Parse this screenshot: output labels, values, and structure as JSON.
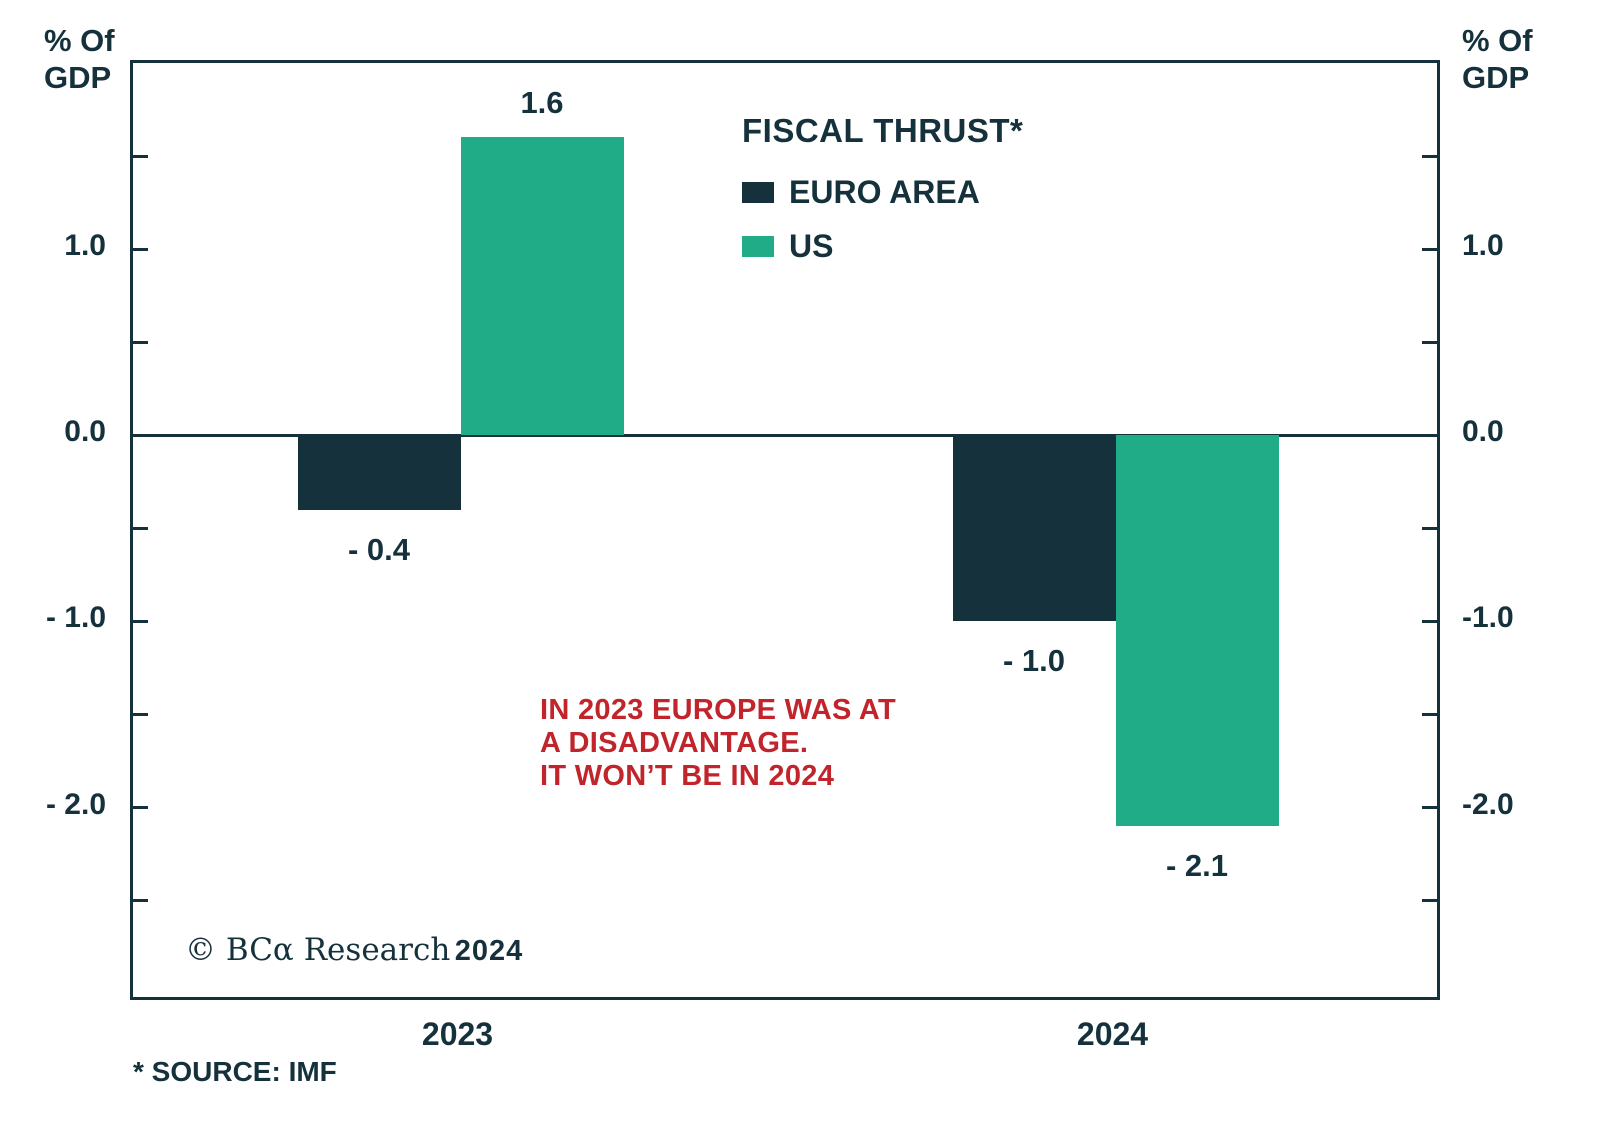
{
  "chart_data": {
    "type": "bar",
    "title": "FISCAL THRUST*",
    "categories": [
      "2023",
      "2024"
    ],
    "group_centers": [
      0.25,
      0.75
    ],
    "series": [
      {
        "name": "EURO AREA",
        "color": "#15323c",
        "values": [
          -0.4,
          -1.0
        ],
        "value_labels": [
          "- 0.4",
          "- 1.0"
        ]
      },
      {
        "name": "US",
        "color": "#1fac87",
        "values": [
          1.6,
          -2.1
        ],
        "value_labels": [
          "1.6",
          "- 2.1"
        ]
      }
    ],
    "ylim": [
      -3.05,
      2.0
    ],
    "yticks": [
      {
        "v": 1.5,
        "left": "",
        "right": ""
      },
      {
        "v": 1.0,
        "left": "1.0",
        "right": "1.0"
      },
      {
        "v": 0.5,
        "left": "",
        "right": ""
      },
      {
        "v": 0.0,
        "left": "0.0",
        "right": "0.0"
      },
      {
        "v": -0.5,
        "left": "",
        "right": ""
      },
      {
        "v": -1.0,
        "left": "- 1.0",
        "right": "-1.0"
      },
      {
        "v": -1.5,
        "left": "",
        "right": ""
      },
      {
        "v": -2.0,
        "left": "- 2.0",
        "right": "-2.0"
      },
      {
        "v": -2.5,
        "left": "",
        "right": ""
      }
    ],
    "axis_unit_label": {
      "line1": "% Of",
      "line2": "GDP"
    },
    "zero_line": true,
    "legend_position": "top-center",
    "grid": false
  },
  "annotation": {
    "lines": [
      "IN 2023 EUROPE WAS AT",
      "A DISADVANTAGE.",
      "IT WON’T BE IN 2024"
    ],
    "color": "#c1242b"
  },
  "copyright": {
    "brand": "© BCα Research",
    "year": "2024"
  },
  "source_note": "* SOURCE: IMF",
  "colors": {
    "text": "#15323c",
    "euro_area_bar": "#15323c",
    "us_bar": "#1fac87",
    "annotation_red": "#c1242b",
    "background": "#ffffff"
  }
}
